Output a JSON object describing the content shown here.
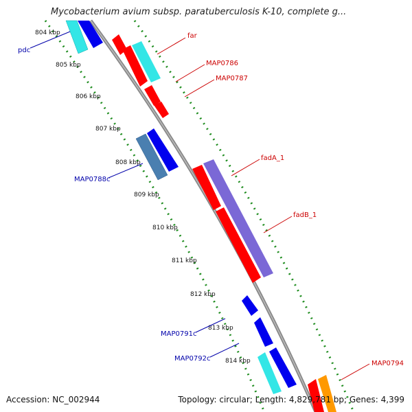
{
  "title": "Mycobacterium avium subsp. paratuberculosis K-10, complete g...",
  "footer": {
    "accession": "Accession: NC_002944",
    "stats": "Topology: circular; Length: 4,829,781 bp; Genes: 4,399"
  },
  "ticks": [
    "804 kbp",
    "805 kbp",
    "806 kbp",
    "807 kbp",
    "808 kbp",
    "809 kbp",
    "810 kbp",
    "811 kbp",
    "812 kbp",
    "813 kbp",
    "814 kbp"
  ],
  "reverse_labels": [
    "pdc",
    "MAP0788c",
    "MAP0791c",
    "MAP0792c"
  ],
  "forward_labels": [
    "far",
    "MAP0786",
    "MAP0787",
    "fadA_1",
    "fadB_1",
    "MAP0794"
  ],
  "colors": {
    "forward": "#ff0000",
    "reverse": "#0000ee",
    "cyan": "#33e6e6",
    "steelblue": "#4a7fb0",
    "purple": "#7b68d6",
    "orange": "#ff9900",
    "backbone": "#888888",
    "dotted": "#1e8c1e",
    "reverse_label": "#0000aa",
    "forward_label": "#cc0000"
  }
}
